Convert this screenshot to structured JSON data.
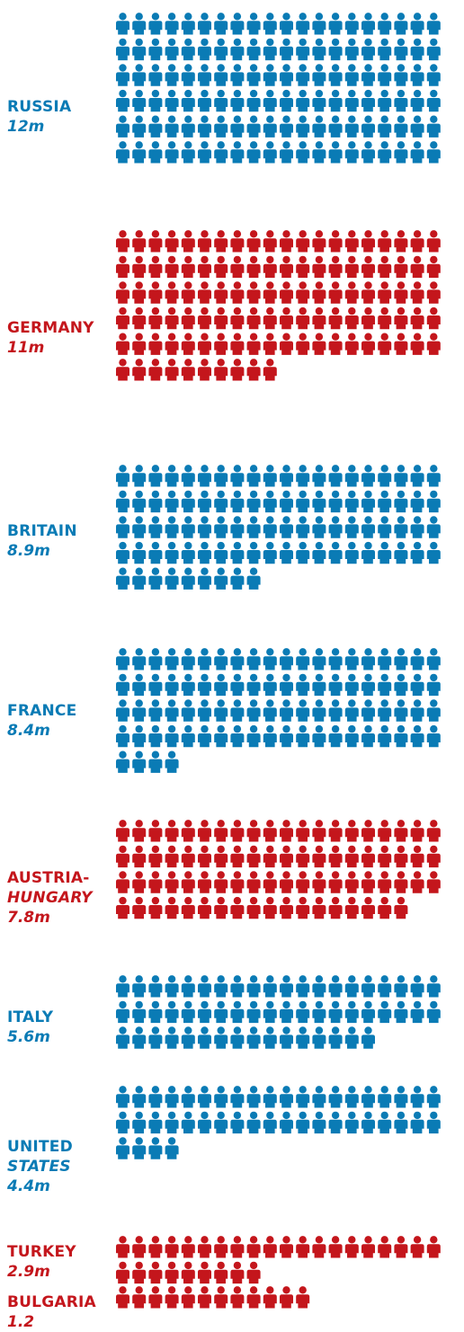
{
  "colors": {
    "allied": "#0a7bb5",
    "central": "#c4161c"
  },
  "chart_data": {
    "type": "pictogram",
    "unit_icon": "person-icon",
    "series": [
      {
        "name": "RUSSIA",
        "label_lines": [
          "RUSSIA"
        ],
        "value": 12,
        "value_label": "12m",
        "side": "allied",
        "icons": 120
      },
      {
        "name": "GERMANY",
        "label_lines": [
          "GERMANY"
        ],
        "value": 11,
        "value_label": "11m",
        "side": "central",
        "icons": 110
      },
      {
        "name": "BRITAIN",
        "label_lines": [
          "BRITAIN"
        ],
        "value": 8.9,
        "value_label": "8.9m",
        "side": "allied",
        "icons": 89
      },
      {
        "name": "FRANCE",
        "label_lines": [
          "FRANCE"
        ],
        "value": 8.4,
        "value_label": "8.4m",
        "side": "allied",
        "icons": 84
      },
      {
        "name": "AUSTRIA-HUNGARY",
        "label_lines": [
          "AUSTRIA-",
          "HUNGARY"
        ],
        "value": 7.8,
        "value_label": "7.8m",
        "side": "central",
        "icons": 78
      },
      {
        "name": "ITALY",
        "label_lines": [
          "ITALY"
        ],
        "value": 5.6,
        "value_label": "5.6m",
        "side": "allied",
        "icons": 56
      },
      {
        "name": "UNITED STATES",
        "label_lines": [
          "UNITED",
          "STATES"
        ],
        "value": 4.4,
        "value_label": "4.4m",
        "side": "allied",
        "icons": 44
      },
      {
        "name": "TURKEY",
        "label_lines": [
          "TURKEY"
        ],
        "value": 2.9,
        "value_label": "2.9m",
        "side": "central",
        "icons": 29
      },
      {
        "name": "BULGARIA",
        "label_lines": [
          "BULGARIA"
        ],
        "value": 1.2,
        "value_label": "1.2",
        "side": "central",
        "icons": 12
      }
    ]
  }
}
